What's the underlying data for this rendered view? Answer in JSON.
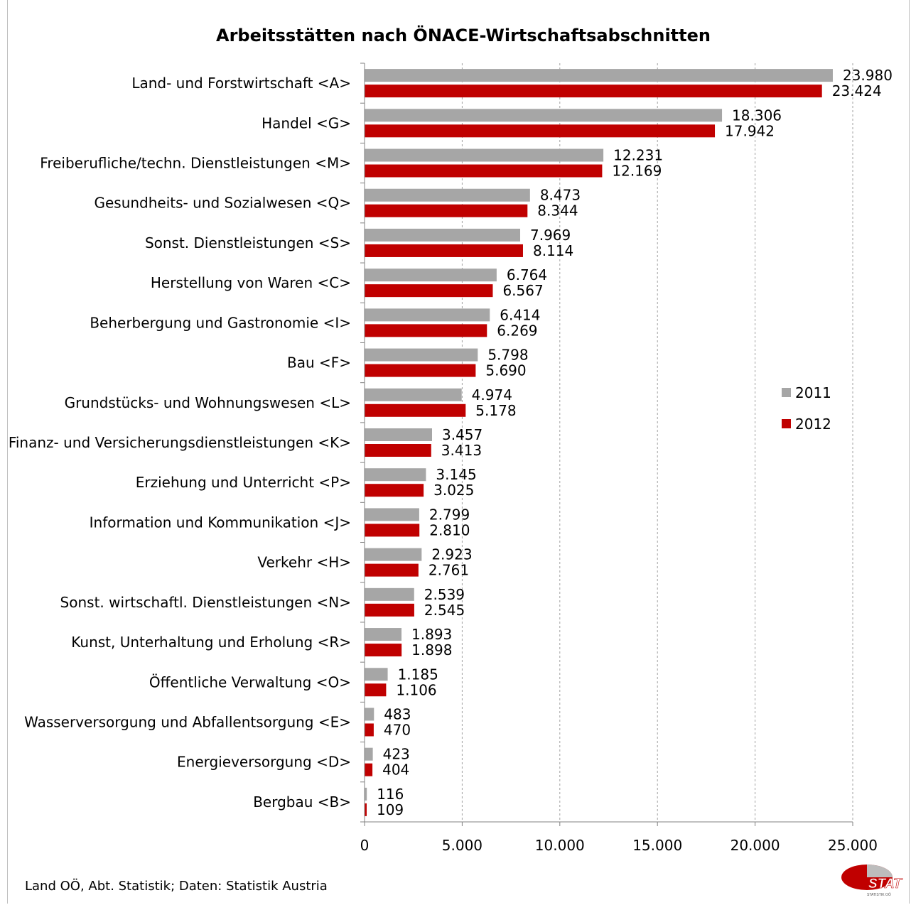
{
  "chart_data": {
    "type": "bar",
    "orientation": "horizontal",
    "title": "Arbeitsstätten nach ÖNACE-Wirtschaftsabschnitten",
    "categories": [
      "Land- und Forstwirtschaft <A>",
      "Handel <G>",
      "Freiberufliche/techn. Dienstleistungen <M>",
      "Gesundheits- und Sozialwesen <Q>",
      "Sonst. Dienstleistungen <S>",
      "Herstellung von Waren <C>",
      "Beherbergung und Gastronomie <I>",
      "Bau <F>",
      "Grundstücks- und Wohnungswesen <L>",
      "Finanz- und Versicherungsdienstleistungen <K>",
      "Erziehung und Unterricht <P>",
      "Information und Kommunikation <J>",
      "Verkehr <H>",
      "Sonst. wirtschaftl. Dienstleistungen <N>",
      "Kunst, Unterhaltung und Erholung <R>",
      "Öffentliche Verwaltung <O>",
      "Wasserversorgung und Abfallentsorgung <E>",
      "Energieversorgung <D>",
      "Bergbau <B>"
    ],
    "series": [
      {
        "name": "2011",
        "color": "#a6a6a6",
        "values": [
          23980,
          18306,
          12231,
          8473,
          7969,
          6764,
          6414,
          5798,
          4974,
          3457,
          3145,
          2799,
          2923,
          2539,
          1893,
          1185,
          483,
          423,
          116
        ],
        "labels": [
          "23.980",
          "18.306",
          "12.231",
          "8.473",
          "7.969",
          "6.764",
          "6.414",
          "5.798",
          "4.974",
          "3.457",
          "3.145",
          "2.799",
          "2.923",
          "2.539",
          "1.893",
          "1.185",
          "483",
          "423",
          "116"
        ]
      },
      {
        "name": "2012",
        "color": "#c00000",
        "values": [
          23424,
          17942,
          12169,
          8344,
          8114,
          6567,
          6269,
          5690,
          5178,
          3413,
          3025,
          2810,
          2761,
          2545,
          1898,
          1106,
          470,
          404,
          109
        ],
        "labels": [
          "23.424",
          "17.942",
          "12.169",
          "8.344",
          "8.114",
          "6.567",
          "6.269",
          "5.690",
          "5.178",
          "3.413",
          "3.025",
          "2.810",
          "2.761",
          "2.545",
          "1.898",
          "1.106",
          "470",
          "404",
          "109"
        ]
      }
    ],
    "xlim": [
      0,
      25000
    ],
    "xticks": [
      0,
      5000,
      10000,
      15000,
      20000,
      25000
    ],
    "xtick_labels": [
      "0",
      "5.000",
      "10.000",
      "15.000",
      "20.000",
      "25.000"
    ],
    "grid": "vertical dashed",
    "legend": "right"
  },
  "footer": {
    "source": "Land OÖ, Abt. Statistik; Daten: Statistik Austria"
  },
  "logo": {
    "text": "STAT",
    "subtext": "STATISTIK OÖ"
  }
}
